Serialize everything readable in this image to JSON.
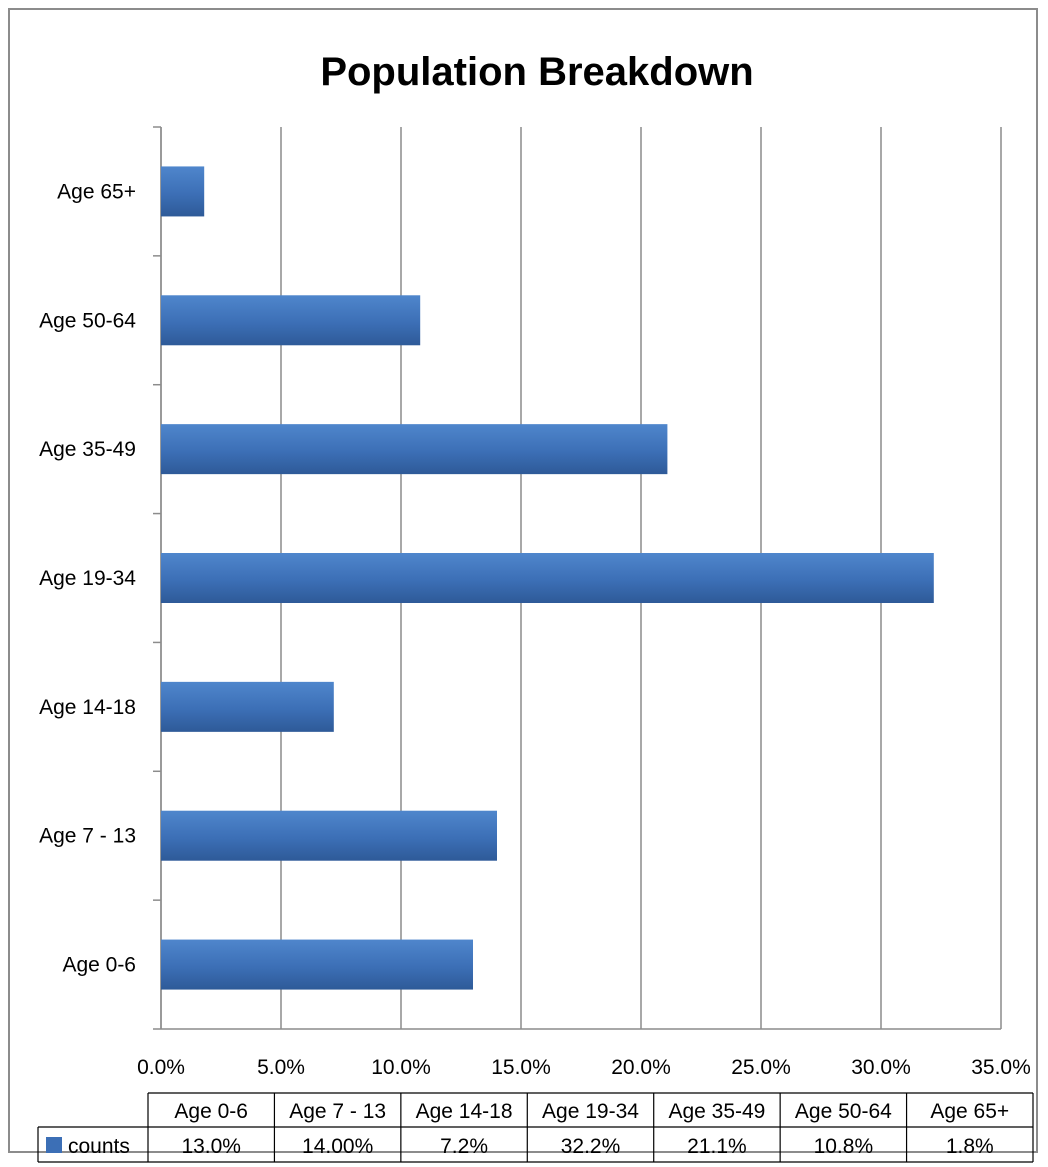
{
  "chart_data": {
    "type": "bar",
    "orientation": "horizontal",
    "title": "Population Breakdown",
    "categories": [
      "Age 0-6",
      "Age 7 - 13",
      "Age 14-18",
      "Age 19-34",
      "Age 35-49",
      "Age 50-64",
      "Age 65+"
    ],
    "series": [
      {
        "name": "counts",
        "values": [
          13.0,
          14.0,
          7.2,
          32.2,
          21.1,
          10.8,
          1.8
        ],
        "table_labels": [
          "13.0%",
          "14.00%",
          "7.2%",
          "32.2%",
          "21.1%",
          "10.8%",
          "1.8%"
        ],
        "color": "#3c6fb6"
      }
    ],
    "xlim": [
      0,
      35
    ],
    "x_ticks": [
      "0.0%",
      "5.0%",
      "10.0%",
      "15.0%",
      "20.0%",
      "25.0%",
      "30.0%",
      "35.0%"
    ],
    "grid": true,
    "data_table": true,
    "legend": "in data table"
  }
}
